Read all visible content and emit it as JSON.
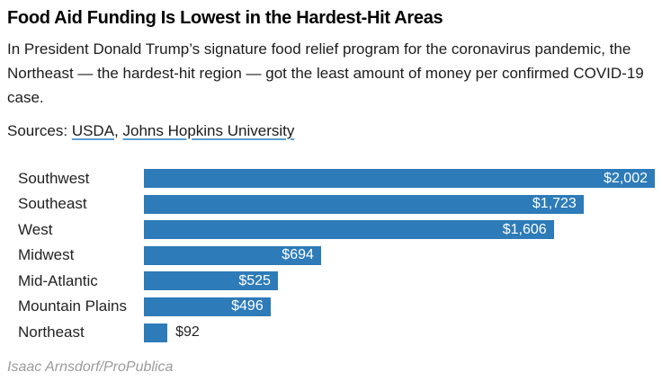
{
  "article": {
    "title": "Food Aid Funding Is Lowest in the Hardest-Hit Areas",
    "dek": "In President Donald Trump’s signature food relief program for the coronavirus pandemic, the Northeast — the hardest-hit region — got the least amount of money per confirmed COVID-19 case.",
    "sources_prefix": "Sources: ",
    "sources": [
      {
        "label": "USDA"
      },
      {
        "label": "Johns Hopkins University"
      }
    ],
    "sources_separator": ", ",
    "credit": "Isaac Arnsdorf/ProPublica"
  },
  "colors": {
    "bar": "#2d7bb8",
    "link_underline": "#5b9fd0",
    "credit_text": "#9b9b9b",
    "value_label_inside": "#ffffff",
    "value_label_outside": "#222222"
  },
  "chart_data": {
    "type": "bar",
    "orientation": "horizontal",
    "title": "Food Aid Funding Is Lowest in the Hardest-Hit Areas",
    "categories": [
      "Southwest",
      "Southeast",
      "West",
      "Midwest",
      "Mid-Atlantic",
      "Mountain Plains",
      "Northeast"
    ],
    "values": [
      2002,
      1723,
      1606,
      694,
      525,
      496,
      92
    ],
    "labels": [
      "$2,002",
      "$1,723",
      "$1,606",
      "$694",
      "$525",
      "$496",
      "$92"
    ],
    "xlim": [
      0,
      2002
    ],
    "grid": false,
    "legend": false
  }
}
